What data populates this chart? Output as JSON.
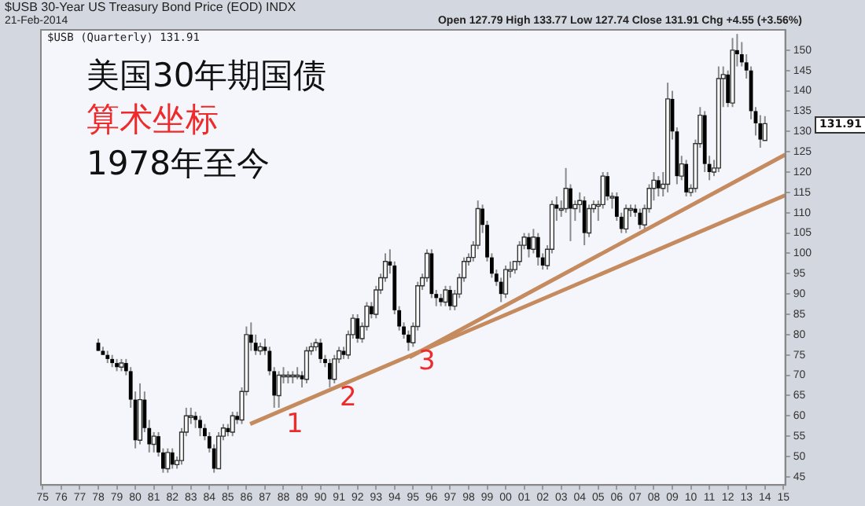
{
  "chart_data": {
    "type": "candlestick",
    "title": "美国30年期国债",
    "subtitle": "算术坐标",
    "x": [
      1978,
      1978.25,
      1978.5,
      1978.75,
      1979,
      1979.25,
      1979.5,
      1979.75,
      1980,
      1980.25,
      1980.5,
      1980.75,
      1981,
      1981.25,
      1981.5,
      1981.75,
      1982,
      1982.25,
      1982.5,
      1982.75,
      1983,
      1983.25,
      1983.5,
      1983.75,
      1984,
      1984.25,
      1984.5,
      1984.75,
      1985,
      1985.25,
      1985.5,
      1985.75,
      1986,
      1986.25,
      1986.5,
      1986.75,
      1987,
      1987.25,
      1987.5,
      1987.75,
      1988,
      1988.25,
      1988.5,
      1988.75,
      1989,
      1989.25,
      1989.5,
      1989.75,
      1990,
      1990.25,
      1990.5,
      1990.75,
      1991,
      1991.25,
      1991.5,
      1991.75,
      1992,
      1992.25,
      1992.5,
      1992.75,
      1993,
      1993.25,
      1993.5,
      1993.75,
      1994,
      1994.25,
      1994.5,
      1994.75,
      1995,
      1995.25,
      1995.5,
      1995.75,
      1996,
      1996.25,
      1996.5,
      1996.75,
      1997,
      1997.25,
      1997.5,
      1997.75,
      1998,
      1998.25,
      1998.5,
      1998.75,
      1999,
      1999.25,
      1999.5,
      1999.75,
      2000,
      2000.25,
      2000.5,
      2000.75,
      2001,
      2001.25,
      2001.5,
      2001.75,
      2002,
      2002.25,
      2002.5,
      2002.75,
      2003,
      2003.25,
      2003.5,
      2003.75,
      2004,
      2004.25,
      2004.5,
      2004.75,
      2005,
      2005.25,
      2005.5,
      2005.75,
      2006,
      2006.25,
      2006.5,
      2006.75,
      2007,
      2007.25,
      2007.5,
      2007.75,
      2008,
      2008.25,
      2008.5,
      2008.75,
      2009,
      2009.25,
      2009.5,
      2009.75,
      2010,
      2010.25,
      2010.5,
      2010.75,
      2011,
      2011.25,
      2011.5,
      2011.75,
      2012,
      2012.25,
      2012.5,
      2012.75,
      2013,
      2013.25,
      2013.5,
      2013.75,
      2014
    ],
    "ohlc": [
      [
        78,
        79,
        76,
        76
      ],
      [
        76,
        77,
        75,
        75
      ],
      [
        75,
        76,
        73,
        74
      ],
      [
        74,
        75,
        72,
        73
      ],
      [
        73,
        74,
        71,
        72
      ],
      [
        72,
        74,
        71,
        73
      ],
      [
        73,
        74,
        70,
        71
      ],
      [
        71,
        72,
        62,
        64
      ],
      [
        64,
        66,
        52,
        54
      ],
      [
        54,
        68,
        53,
        64
      ],
      [
        64,
        66,
        56,
        57
      ],
      [
        57,
        59,
        51,
        53
      ],
      [
        53,
        56,
        51,
        55
      ],
      [
        55,
        56,
        50,
        51
      ],
      [
        51,
        52,
        46,
        47
      ],
      [
        47,
        52,
        46,
        51
      ],
      [
        51,
        52,
        47,
        48
      ],
      [
        48,
        50,
        47,
        49
      ],
      [
        49,
        57,
        48,
        56
      ],
      [
        56,
        62,
        55,
        60
      ],
      [
        60,
        62,
        58,
        60
      ],
      [
        60,
        61,
        57,
        59
      ],
      [
        59,
        60,
        55,
        57
      ],
      [
        57,
        58,
        54,
        55
      ],
      [
        55,
        56,
        51,
        52
      ],
      [
        52,
        53,
        46,
        47
      ],
      [
        47,
        56,
        47,
        55
      ],
      [
        55,
        58,
        54,
        57
      ],
      [
        57,
        58,
        55,
        56
      ],
      [
        56,
        61,
        55,
        60
      ],
      [
        60,
        61,
        58,
        59
      ],
      [
        59,
        67,
        58,
        66
      ],
      [
        66,
        82,
        65,
        80
      ],
      [
        80,
        83,
        76,
        78
      ],
      [
        78,
        80,
        75,
        76
      ],
      [
        76,
        78,
        75,
        77
      ],
      [
        77,
        79,
        75,
        76
      ],
      [
        76,
        77,
        70,
        71
      ],
      [
        71,
        72,
        62,
        65
      ],
      [
        65,
        71,
        62,
        70
      ],
      [
        70,
        72,
        68,
        70
      ],
      [
        70,
        71,
        68,
        70
      ],
      [
        70,
        71,
        68,
        70
      ],
      [
        70,
        72,
        69,
        70
      ],
      [
        70,
        71,
        67,
        69
      ],
      [
        69,
        77,
        68,
        76
      ],
      [
        76,
        78,
        75,
        77
      ],
      [
        77,
        79,
        76,
        78
      ],
      [
        78,
        79,
        73,
        74
      ],
      [
        74,
        75,
        72,
        73
      ],
      [
        73,
        74,
        67,
        69
      ],
      [
        69,
        75,
        68,
        74
      ],
      [
        74,
        77,
        73,
        76
      ],
      [
        76,
        77,
        74,
        75
      ],
      [
        75,
        81,
        74,
        80
      ],
      [
        80,
        85,
        79,
        84
      ],
      [
        84,
        85,
        78,
        79
      ],
      [
        79,
        83,
        78,
        82
      ],
      [
        82,
        88,
        81,
        87
      ],
      [
        87,
        88,
        84,
        85
      ],
      [
        85,
        92,
        84,
        91
      ],
      [
        91,
        95,
        90,
        94
      ],
      [
        94,
        100,
        93,
        98
      ],
      [
        98,
        101,
        95,
        97
      ],
      [
        97,
        98,
        85,
        86
      ],
      [
        86,
        87,
        81,
        82
      ],
      [
        82,
        83,
        79,
        80
      ],
      [
        80,
        81,
        76,
        78
      ],
      [
        78,
        83,
        77,
        82
      ],
      [
        82,
        93,
        81,
        92
      ],
      [
        92,
        95,
        91,
        94
      ],
      [
        94,
        101,
        93,
        100
      ],
      [
        100,
        101,
        89,
        90
      ],
      [
        90,
        91,
        87,
        89
      ],
      [
        89,
        90,
        87,
        88
      ],
      [
        88,
        92,
        87,
        91
      ],
      [
        91,
        92,
        86,
        87
      ],
      [
        87,
        91,
        86,
        90
      ],
      [
        90,
        95,
        89,
        94
      ],
      [
        94,
        99,
        93,
        98
      ],
      [
        98,
        100,
        97,
        99
      ],
      [
        99,
        103,
        98,
        102
      ],
      [
        102,
        113,
        101,
        111
      ],
      [
        111,
        112,
        105,
        107
      ],
      [
        107,
        108,
        98,
        99
      ],
      [
        99,
        100,
        94,
        95
      ],
      [
        95,
        96,
        92,
        93
      ],
      [
        93,
        94,
        88,
        90
      ],
      [
        90,
        97,
        89,
        96
      ],
      [
        96,
        98,
        94,
        96
      ],
      [
        96,
        98,
        95,
        98
      ],
      [
        98,
        103,
        97,
        102
      ],
      [
        102,
        105,
        101,
        104
      ],
      [
        104,
        105,
        99,
        101
      ],
      [
        101,
        106,
        100,
        104
      ],
      [
        104,
        105,
        97,
        99
      ],
      [
        99,
        100,
        96,
        97
      ],
      [
        97,
        102,
        96,
        101
      ],
      [
        101,
        113,
        100,
        112
      ],
      [
        112,
        114,
        108,
        111
      ],
      [
        111,
        113,
        109,
        111
      ],
      [
        111,
        121,
        110,
        116
      ],
      [
        116,
        117,
        103,
        111
      ],
      [
        111,
        113,
        108,
        112
      ],
      [
        112,
        115,
        110,
        113
      ],
      [
        113,
        114,
        102,
        105
      ],
      [
        105,
        112,
        104,
        111
      ],
      [
        111,
        113,
        110,
        112
      ],
      [
        112,
        113,
        108,
        112
      ],
      [
        112,
        120,
        111,
        119
      ],
      [
        119,
        120,
        113,
        114
      ],
      [
        114,
        115,
        111,
        114
      ],
      [
        114,
        115,
        108,
        109
      ],
      [
        109,
        110,
        105,
        106
      ],
      [
        106,
        112,
        105,
        111
      ],
      [
        111,
        112,
        109,
        111
      ],
      [
        111,
        112,
        109,
        110
      ],
      [
        110,
        111,
        106,
        107
      ],
      [
        107,
        112,
        106,
        111
      ],
      [
        111,
        117,
        110,
        116
      ],
      [
        116,
        120,
        113,
        118
      ],
      [
        118,
        119,
        114,
        116
      ],
      [
        116,
        120,
        114,
        117
      ],
      [
        117,
        142,
        115,
        138
      ],
      [
        138,
        140,
        128,
        130
      ],
      [
        130,
        131,
        117,
        119
      ],
      [
        119,
        124,
        118,
        122
      ],
      [
        122,
        123,
        114,
        115
      ],
      [
        115,
        117,
        114,
        116
      ],
      [
        116,
        128,
        115,
        127
      ],
      [
        127,
        136,
        126,
        134
      ],
      [
        134,
        135,
        120,
        122
      ],
      [
        122,
        124,
        118,
        120
      ],
      [
        120,
        123,
        119,
        121
      ],
      [
        121,
        146,
        120,
        143
      ],
      [
        143,
        146,
        136,
        144
      ],
      [
        144,
        145,
        136,
        137
      ],
      [
        137,
        153,
        136,
        150
      ],
      [
        150,
        154,
        146,
        149
      ],
      [
        149,
        152,
        146,
        147
      ],
      [
        147,
        149,
        143,
        145
      ],
      [
        145,
        146,
        133,
        135
      ],
      [
        135,
        136,
        129,
        132
      ],
      [
        132,
        134,
        126,
        128
      ],
      [
        127.79,
        133.77,
        127.74,
        131.91
      ]
    ],
    "series": [
      {
        "type": "line",
        "x": [
          1986.2,
          2015.1
        ],
        "values": [
          58,
          114.3
        ],
        "color": "#c58a5e"
      },
      {
        "type": "line",
        "x": [
          1994.8,
          2015.1
        ],
        "values": [
          74.4,
          124.3
        ],
        "color": "#c58a5e"
      }
    ],
    "xlim": [
      1974.9,
      2015.1
    ],
    "xticks": [
      {
        "value": 1975,
        "label": "75"
      },
      {
        "value": 1976,
        "label": "76"
      },
      {
        "value": 1977,
        "label": "77"
      },
      {
        "value": 1978,
        "label": "78"
      },
      {
        "value": 1979,
        "label": "79"
      },
      {
        "value": 1980,
        "label": "80"
      },
      {
        "value": 1981,
        "label": "81"
      },
      {
        "value": 1982,
        "label": "82"
      },
      {
        "value": 1983,
        "label": "83"
      },
      {
        "value": 1984,
        "label": "84"
      },
      {
        "value": 1985,
        "label": "85"
      },
      {
        "value": 1986,
        "label": "86"
      },
      {
        "value": 1987,
        "label": "87"
      },
      {
        "value": 1988,
        "label": "88"
      },
      {
        "value": 1989,
        "label": "89"
      },
      {
        "value": 1990,
        "label": "90"
      },
      {
        "value": 1991,
        "label": "91"
      },
      {
        "value": 1992,
        "label": "92"
      },
      {
        "value": 1993,
        "label": "93"
      },
      {
        "value": 1994,
        "label": "94"
      },
      {
        "value": 1995,
        "label": "95"
      },
      {
        "value": 1996,
        "label": "96"
      },
      {
        "value": 1997,
        "label": "97"
      },
      {
        "value": 1998,
        "label": "98"
      },
      {
        "value": 1999,
        "label": "99"
      },
      {
        "value": 2000,
        "label": "00"
      },
      {
        "value": 2001,
        "label": "01"
      },
      {
        "value": 2002,
        "label": "02"
      },
      {
        "value": 2003,
        "label": "03"
      },
      {
        "value": 2004,
        "label": "04"
      },
      {
        "value": 2005,
        "label": "05"
      },
      {
        "value": 2006,
        "label": "06"
      },
      {
        "value": 2007,
        "label": "07"
      },
      {
        "value": 2008,
        "label": "08"
      },
      {
        "value": 2009,
        "label": "09"
      },
      {
        "value": 2010,
        "label": "10"
      },
      {
        "value": 2011,
        "label": "11"
      },
      {
        "value": 2012,
        "label": "12"
      },
      {
        "value": 2013,
        "label": "13"
      },
      {
        "value": 2014,
        "label": "14"
      },
      {
        "value": 2015,
        "label": "15"
      }
    ],
    "ylim": [
      43,
      155
    ],
    "yticks": [
      45,
      50,
      55,
      60,
      65,
      70,
      75,
      80,
      85,
      90,
      95,
      100,
      105,
      110,
      115,
      120,
      125,
      130,
      135,
      140,
      145,
      150
    ],
    "annotations": [
      "$USB 30-Year US Treasury Bond Price (EOD) INDX",
      "21-Feb-2014",
      "Open 127.79 High 133.77 Low 127.74 Close 131.91 Chg +4.55 (+3.56%)",
      "$USB (Quarterly) 131.91",
      "1978年至今",
      "131.91",
      "1",
      "2",
      "3"
    ],
    "grid": false,
    "legend": false
  }
}
